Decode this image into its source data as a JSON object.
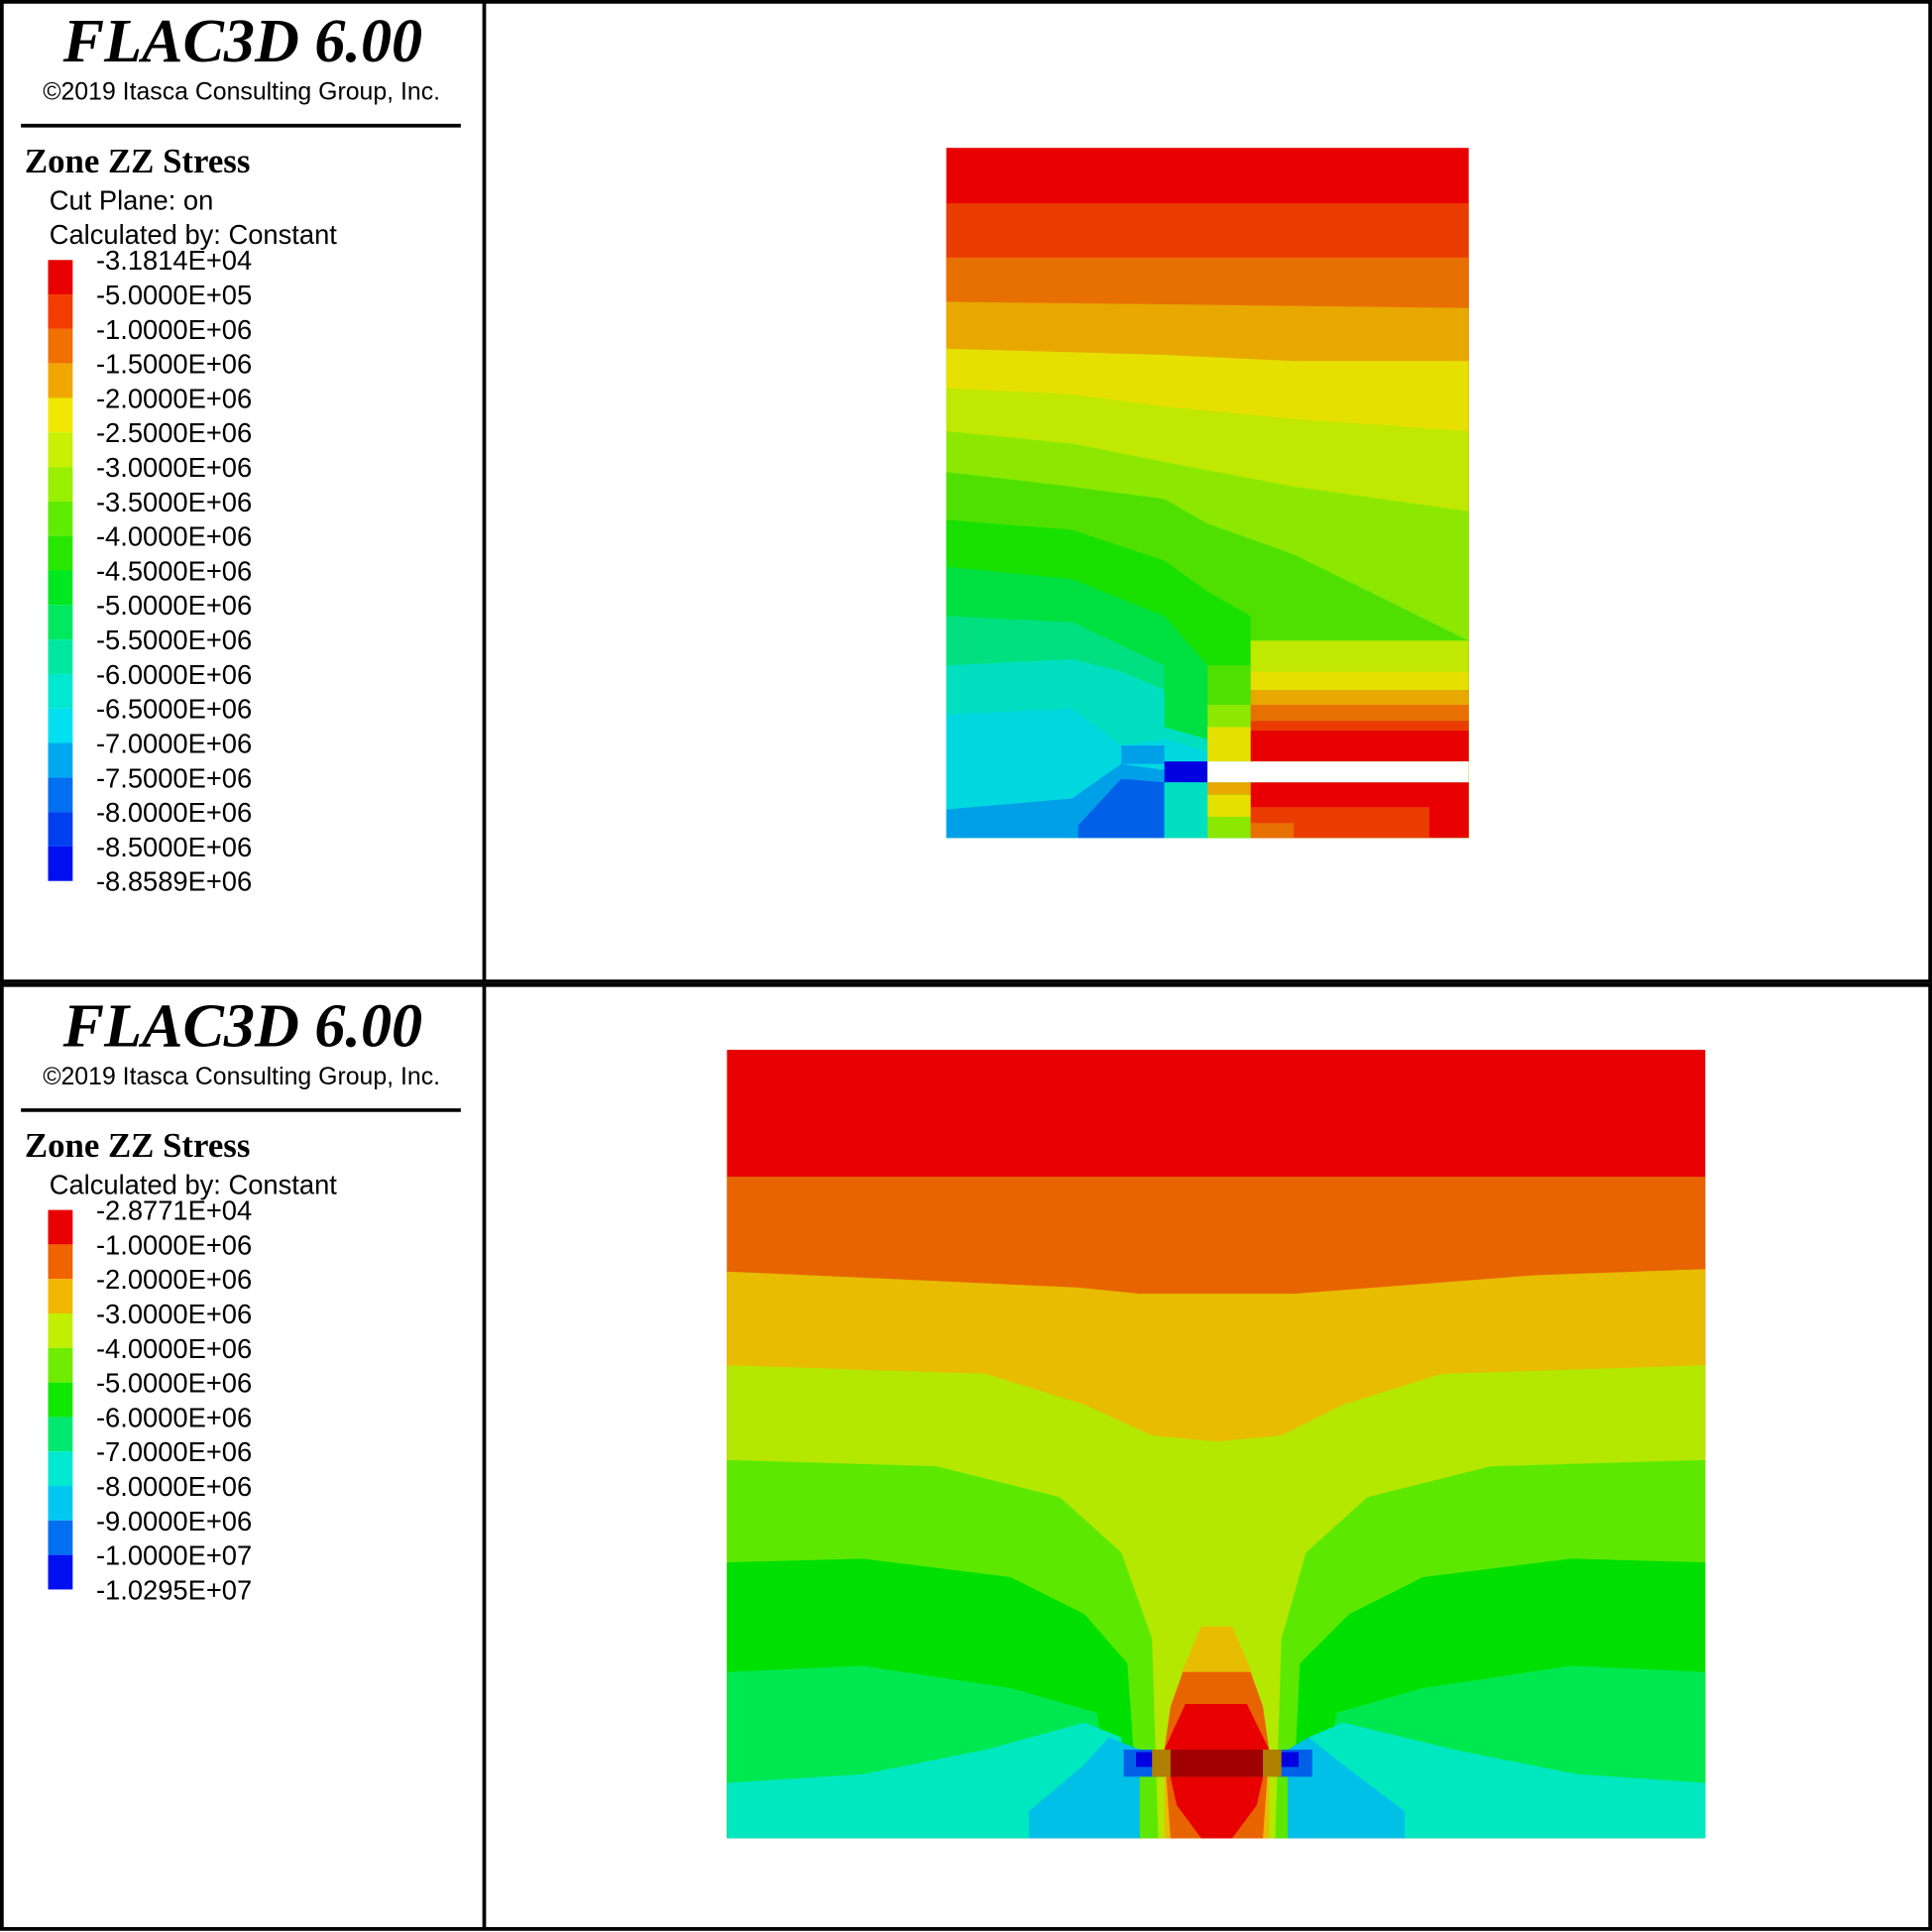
{
  "panels": [
    {
      "title": "FLAC3D 6.00",
      "copyright": "©2019 Itasca Consulting Group, Inc.",
      "heading": "Zone ZZ Stress",
      "subheadings": [
        "Cut Plane: on",
        "Calculated by: Constant"
      ],
      "legend": {
        "labels": [
          "-3.1814E+04",
          "-5.0000E+05",
          "-1.0000E+06",
          "-1.5000E+06",
          "-2.0000E+06",
          "-2.5000E+06",
          "-3.0000E+06",
          "-3.5000E+06",
          "-4.0000E+06",
          "-4.5000E+06",
          "-5.0000E+06",
          "-5.5000E+06",
          "-6.0000E+06",
          "-6.5000E+06",
          "-7.0000E+06",
          "-7.5000E+06",
          "-8.0000E+06",
          "-8.5000E+06",
          "-8.8589E+06"
        ],
        "colors": [
          "#e80000",
          "#f23c00",
          "#f07000",
          "#f0a800",
          "#f0e800",
          "#c8f000",
          "#98f000",
          "#60ec00",
          "#28e800",
          "#00e820",
          "#00e860",
          "#00e8a0",
          "#00e8d0",
          "#00e0f0",
          "#00a8f0",
          "#0070f0",
          "#0040f0",
          "#0010f0"
        ]
      }
    },
    {
      "title": "FLAC3D 6.00",
      "copyright": "©2019 Itasca Consulting Group, Inc.",
      "heading": "Zone ZZ Stress",
      "subheadings": [
        "Calculated by: Constant"
      ],
      "legend": {
        "labels": [
          "-2.8771E+04",
          "-1.0000E+06",
          "-2.0000E+06",
          "-3.0000E+06",
          "-4.0000E+06",
          "-5.0000E+06",
          "-6.0000E+06",
          "-7.0000E+06",
          "-8.0000E+06",
          "-9.0000E+06",
          "-1.0000E+07",
          "-1.0295E+07"
        ],
        "colors": [
          "#e80000",
          "#f06400",
          "#f0b800",
          "#c0f000",
          "#70ec00",
          "#10e800",
          "#00e870",
          "#00e8d0",
          "#00c8f0",
          "#0070f0",
          "#0010f0"
        ]
      }
    }
  ]
}
